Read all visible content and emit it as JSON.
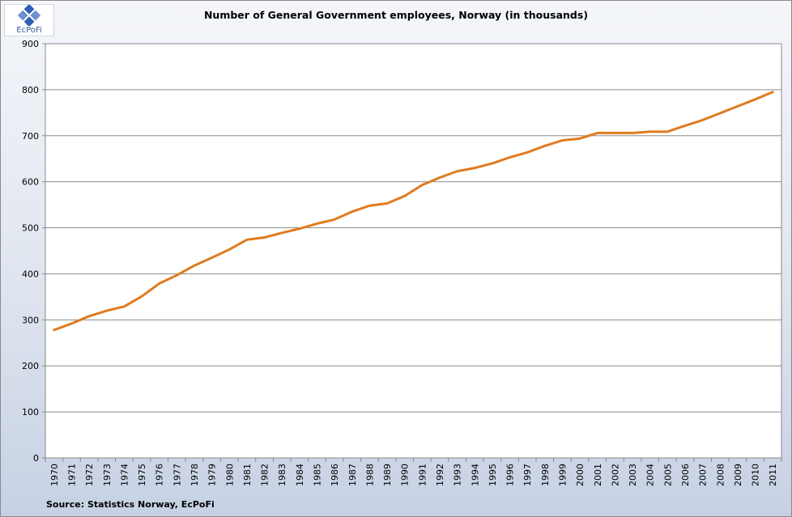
{
  "logo": {
    "text": "EcPoFi"
  },
  "source": "Source: Statistics  Norway, EcPoFi",
  "chart_data": {
    "type": "line",
    "title": "Number of General Government employees, Norway (in thousands)",
    "xlabel": "",
    "ylabel": "",
    "ylim": [
      0,
      900
    ],
    "yticks": [
      0,
      100,
      200,
      300,
      400,
      500,
      600,
      700,
      800,
      900
    ],
    "grid": true,
    "legend": "none",
    "x": [
      "1970",
      "1971",
      "1972",
      "1973",
      "1974",
      "1975",
      "1976",
      "1977",
      "1978",
      "1979",
      "1980",
      "1981",
      "1982",
      "1983",
      "1984",
      "1985",
      "1986",
      "1987",
      "1988",
      "1989",
      "1990",
      "1991",
      "1992",
      "1993",
      "1994",
      "1995",
      "1996",
      "1997",
      "1998",
      "1999",
      "2000",
      "2001",
      "2002",
      "2003",
      "2004",
      "2005",
      "2006",
      "2007",
      "2008",
      "2009",
      "2010",
      "2011"
    ],
    "series": [
      {
        "color": "#e07b1f",
        "values": [
          278,
          292,
          308,
          320,
          329,
          351,
          379,
          397,
          418,
          435,
          453,
          474,
          479,
          489,
          498,
          509,
          518,
          535,
          548,
          553,
          569,
          593,
          609,
          623,
          630,
          640,
          653,
          664,
          678,
          690,
          694,
          706,
          706,
          706,
          709,
          709,
          722,
          734,
          749,
          764,
          779,
          795
        ]
      }
    ]
  }
}
